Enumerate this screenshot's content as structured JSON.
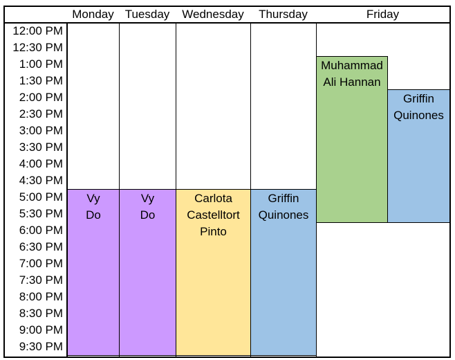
{
  "days": [
    "Monday",
    "Tuesday",
    "Wednesday",
    "Thursday",
    "Friday"
  ],
  "times": [
    "12:00 PM",
    "12:30 PM",
    "1:00 PM",
    "1:30 PM",
    "2:00 PM",
    "2:30 PM",
    "3:00 PM",
    "3:30 PM",
    "4:00 PM",
    "4:30 PM",
    "5:00 PM",
    "5:30 PM",
    "6:00 PM",
    "6:30 PM",
    "7:00 PM",
    "7:30 PM",
    "8:00 PM",
    "8:30 PM",
    "9:00 PM",
    "9:30 PM"
  ],
  "events": [
    {
      "day": "Monday",
      "lane": 0,
      "start": "5:00 PM",
      "end": "10:00 PM",
      "lines": [
        "Vy",
        "Do"
      ],
      "color": "#cc99ff"
    },
    {
      "day": "Tuesday",
      "lane": 0,
      "start": "5:00 PM",
      "end": "10:00 PM",
      "lines": [
        "Vy",
        "Do"
      ],
      "color": "#cc99ff"
    },
    {
      "day": "Wednesday",
      "lane": 0,
      "start": "5:00 PM",
      "end": "10:00 PM",
      "lines": [
        "Carlota",
        "Castelltort",
        "Pinto"
      ],
      "color": "#ffe699"
    },
    {
      "day": "Thursday",
      "lane": 0,
      "start": "5:00 PM",
      "end": "10:00 PM",
      "lines": [
        "Griffin",
        "Quinones"
      ],
      "color": "#9dc3e6"
    },
    {
      "day": "Friday",
      "lane": 0,
      "start": "1:00 PM",
      "end": "6:00 PM",
      "lines": [
        "Muhammad",
        "Ali Hannan"
      ],
      "color": "#a9d18e"
    },
    {
      "day": "Friday",
      "lane": 1,
      "start": "2:00 PM",
      "end": "6:00 PM",
      "lines": [
        "Griffin",
        "Quinones"
      ],
      "color": "#9dc3e6"
    }
  ]
}
